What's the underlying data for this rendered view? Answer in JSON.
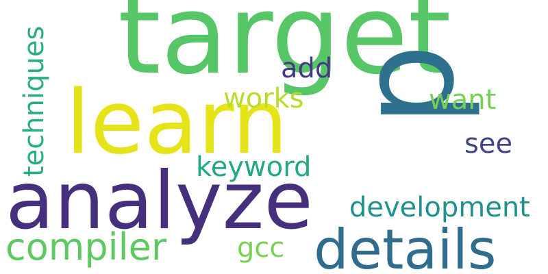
{
  "words": {
    "target": {
      "text": "target",
      "color": "#56c667"
    },
    "learn": {
      "text": "learn",
      "color": "#e6e419"
    },
    "analyze": {
      "text": "analyze",
      "color": "#46307e"
    },
    "p": {
      "text": "p",
      "color": "#2d718e"
    },
    "details": {
      "text": "details",
      "color": "#2f6c8e"
    },
    "compiler": {
      "text": "compiler",
      "color": "#5ec962"
    },
    "development": {
      "text": "development",
      "color": "#21918c"
    },
    "keyword": {
      "text": "keyword",
      "color": "#22a884"
    },
    "works": {
      "text": "works",
      "color": "#b5de2b"
    },
    "want": {
      "text": "want",
      "color": "#75d054"
    },
    "add": {
      "text": "add",
      "color": "#443983"
    },
    "see": {
      "text": "see",
      "color": "#414487"
    },
    "gcc": {
      "text": "gcc",
      "color": "#7ad151"
    },
    "techniques": {
      "text": "techniques",
      "color": "#29af7f"
    }
  }
}
